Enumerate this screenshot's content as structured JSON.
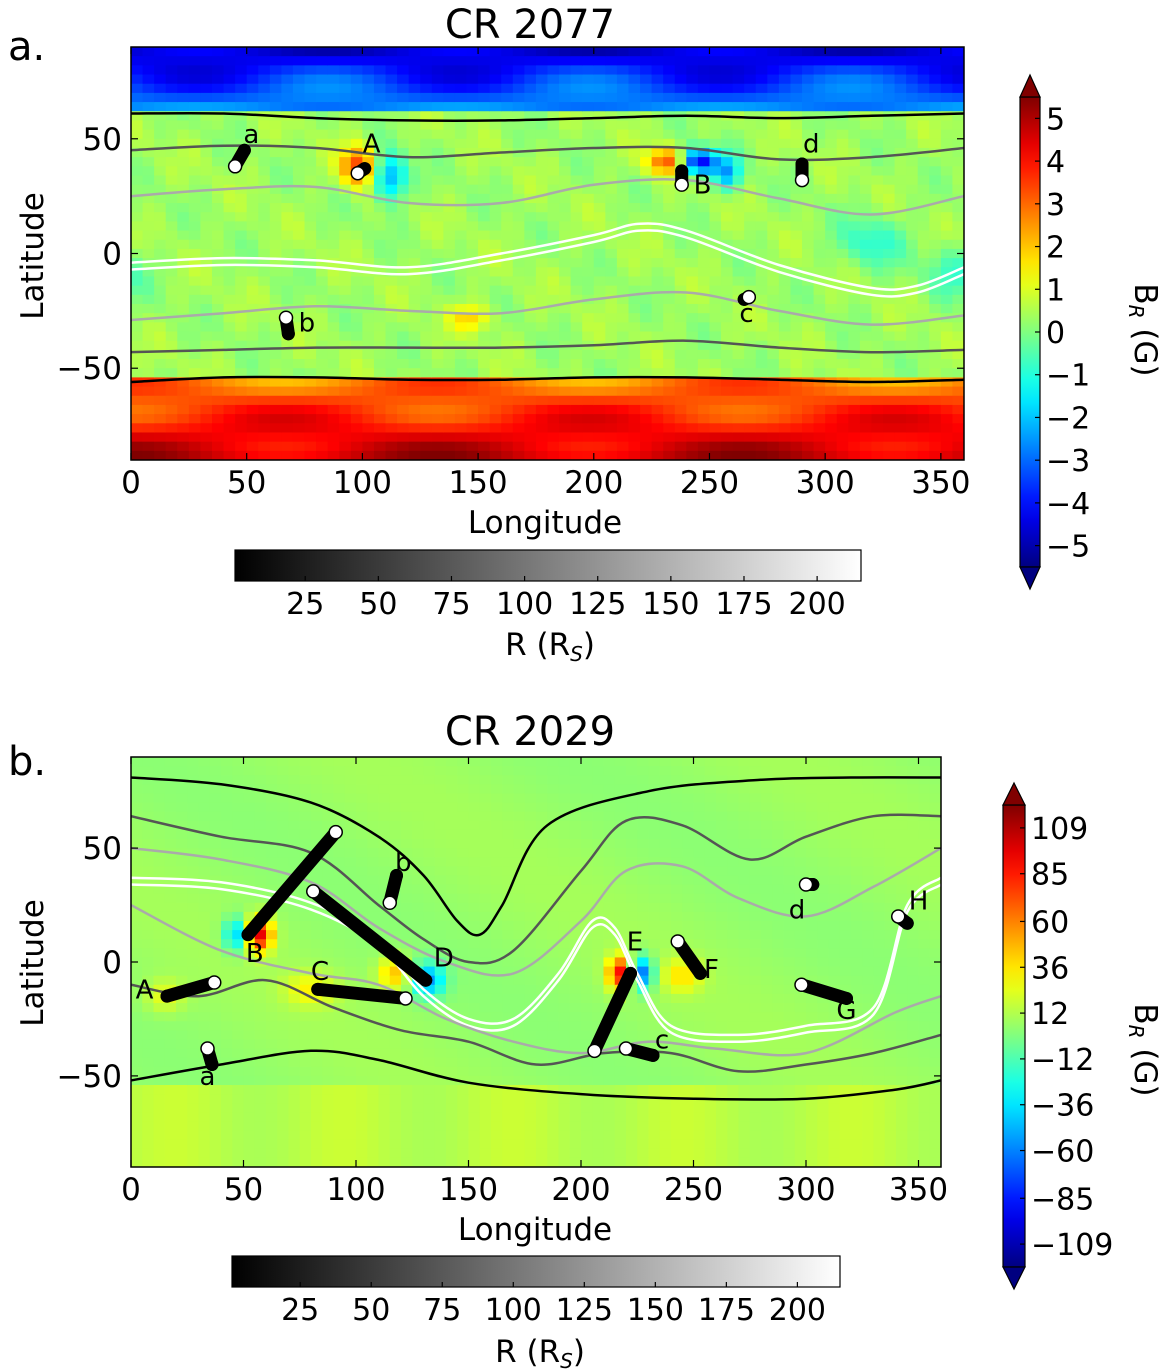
{
  "chart_data": [
    {
      "panel_label": "a.",
      "type": "heatmap",
      "title": "CR 2077",
      "xlabel": "Longitude",
      "ylabel": "Latitude",
      "xlim": [
        0,
        360
      ],
      "ylim": [
        -90,
        90
      ],
      "xticks": [
        "0",
        "50",
        "100",
        "150",
        "200",
        "250",
        "300",
        "350"
      ],
      "xtick_values": [
        0,
        50,
        100,
        150,
        200,
        250,
        300,
        350
      ],
      "yticks": [
        "50",
        "0",
        "−50"
      ],
      "ytick_values": [
        50,
        0,
        -50
      ],
      "colorbar": {
        "label": "B",
        "label_sub": "R",
        "label_unit": "(G)",
        "ticks": [
          "5",
          "4",
          "3",
          "2",
          "1",
          "0",
          "−1",
          "−2",
          "−3",
          "−4",
          "−5"
        ],
        "tick_values": [
          5,
          4,
          3,
          2,
          1,
          0,
          -1,
          -2,
          -3,
          -4,
          -5
        ],
        "range": [
          -5.5,
          5.5
        ],
        "colormap": "jet"
      },
      "distance_colorbar": {
        "label": "R (R",
        "label_sub": "S",
        "label_close": ")",
        "ticks": [
          "25",
          "50",
          "75",
          "100",
          "125",
          "150",
          "175",
          "200"
        ],
        "tick_values": [
          25,
          50,
          75,
          100,
          125,
          150,
          175,
          200
        ],
        "range": [
          1,
          215
        ]
      },
      "contours": [
        {
          "color": "#000000",
          "lon": [
            0,
            40,
            80,
            120,
            160,
            200,
            240,
            280,
            320,
            360
          ],
          "lat": [
            61,
            61,
            59,
            58,
            58,
            59,
            60,
            59,
            60,
            61
          ]
        },
        {
          "color": "#555555",
          "lon": [
            0,
            40,
            80,
            120,
            160,
            200,
            240,
            280,
            320,
            360
          ],
          "lat": [
            45,
            47,
            46,
            42,
            44,
            46,
            46,
            41,
            42,
            46
          ]
        },
        {
          "color": "#aaaaaa",
          "lon": [
            0,
            40,
            80,
            120,
            160,
            200,
            240,
            280,
            320,
            360
          ],
          "lat": [
            25,
            28,
            29,
            22,
            22,
            30,
            32,
            24,
            17,
            25
          ]
        },
        {
          "color": "#ffffff",
          "lon": [
            0,
            40,
            80,
            120,
            160,
            200,
            220,
            240,
            280,
            320,
            340,
            360
          ],
          "lat": [
            -4,
            -2,
            -3,
            -6,
            0,
            8,
            13,
            10,
            -5,
            -15,
            -14,
            -6
          ]
        },
        {
          "color": "#ffffff",
          "lon": [
            0,
            40,
            80,
            120,
            160,
            200,
            220,
            240,
            280,
            320,
            340,
            360
          ],
          "lat": [
            -7,
            -5,
            -6,
            -9,
            -3,
            5,
            10,
            7,
            -8,
            -18,
            -17,
            -9
          ]
        },
        {
          "color": "#aaaaaa",
          "lon": [
            0,
            40,
            80,
            120,
            160,
            200,
            240,
            280,
            320,
            360
          ],
          "lat": [
            -29,
            -26,
            -23,
            -25,
            -26,
            -20,
            -17,
            -25,
            -31,
            -27
          ]
        },
        {
          "color": "#555555",
          "lon": [
            0,
            40,
            80,
            120,
            160,
            200,
            240,
            280,
            320,
            360
          ],
          "lat": [
            -43,
            -42,
            -41,
            -41,
            -41,
            -40,
            -38,
            -41,
            -43,
            -42
          ]
        },
        {
          "color": "#000000",
          "lon": [
            0,
            40,
            80,
            120,
            160,
            200,
            240,
            280,
            320,
            360
          ],
          "lat": [
            -56,
            -54,
            -54,
            -55,
            -55,
            -54,
            -54,
            -55,
            -56,
            -55
          ]
        }
      ],
      "tracks": [
        {
          "label": "a",
          "start": [
            45,
            38
          ],
          "end": [
            49,
            45
          ],
          "label_at": [
            52,
            52
          ]
        },
        {
          "label": "A",
          "start": [
            98,
            35
          ],
          "end": [
            101,
            37
          ],
          "label_at": [
            104,
            48
          ]
        },
        {
          "label": "B",
          "start": [
            238,
            30
          ],
          "end": [
            238,
            36
          ],
          "label_at": [
            247,
            30
          ]
        },
        {
          "label": "d",
          "start": [
            290,
            32
          ],
          "end": [
            290,
            39
          ],
          "label_at": [
            294,
            48
          ]
        },
        {
          "label": "b",
          "start": [
            67,
            -28
          ],
          "end": [
            68,
            -35
          ],
          "label_at": [
            76,
            -30
          ]
        },
        {
          "label": "c",
          "start": [
            267,
            -19
          ],
          "end": [
            265,
            -20
          ],
          "label_at": [
            266,
            -26
          ]
        }
      ],
      "features": [
        {
          "lon": 98,
          "lat": 38,
          "value": 3.2,
          "sigma": [
            5,
            6
          ]
        },
        {
          "lon": 112,
          "lat": 33,
          "value": -2.8,
          "sigma": [
            5,
            7
          ]
        },
        {
          "lon": 232,
          "lat": 40,
          "value": 3.2,
          "sigma": [
            6,
            4
          ]
        },
        {
          "lon": 245,
          "lat": 40,
          "value": -4.8,
          "sigma": [
            6,
            4
          ]
        },
        {
          "lon": 258,
          "lat": 35,
          "value": -2.5,
          "sigma": [
            4,
            5
          ]
        },
        {
          "lon": 320,
          "lat": 5,
          "value": -1.2,
          "sigma": [
            10,
            8
          ]
        },
        {
          "lon": 355,
          "lat": -8,
          "value": -1.0,
          "sigma": [
            8,
            8
          ]
        },
        {
          "lon": 147,
          "lat": -28,
          "value": 1.5,
          "sigma": [
            6,
            4
          ]
        }
      ]
    },
    {
      "panel_label": "b.",
      "type": "heatmap",
      "title": "CR 2029",
      "xlabel": "Longitude",
      "ylabel": "Latitude",
      "xlim": [
        0,
        360
      ],
      "ylim": [
        -90,
        90
      ],
      "xticks": [
        "0",
        "50",
        "100",
        "150",
        "200",
        "250",
        "300",
        "350"
      ],
      "xtick_values": [
        0,
        50,
        100,
        150,
        200,
        250,
        300,
        350
      ],
      "yticks": [
        "50",
        "0",
        "−50"
      ],
      "ytick_values": [
        50,
        0,
        -50
      ],
      "colorbar": {
        "label": "B",
        "label_sub": "R",
        "label_unit": "(G)",
        "ticks": [
          "109",
          "85",
          "60",
          "36",
          "12",
          "−12",
          "−36",
          "−60",
          "−85",
          "−109"
        ],
        "tick_values": [
          109,
          85,
          60,
          36,
          12,
          -12,
          -36,
          -60,
          -85,
          -109
        ],
        "range": [
          -121,
          121
        ],
        "colormap": "jet"
      },
      "distance_colorbar": {
        "label": "R (R",
        "label_sub": "S",
        "label_close": ")",
        "ticks": [
          "25",
          "50",
          "75",
          "100",
          "125",
          "150",
          "175",
          "200"
        ],
        "tick_values": [
          25,
          50,
          75,
          100,
          125,
          150,
          175,
          200
        ],
        "range": [
          1,
          215
        ]
      },
      "contours": [
        {
          "color": "#000000",
          "lon": [
            0,
            40,
            80,
            110,
            130,
            145,
            155,
            165,
            185,
            230,
            280,
            320,
            360
          ],
          "lat": [
            81,
            78,
            70,
            55,
            38,
            18,
            12,
            25,
            60,
            75,
            80,
            81,
            81
          ]
        },
        {
          "color": "#555555",
          "lon": [
            0,
            40,
            80,
            110,
            130,
            150,
            170,
            200,
            220,
            245,
            275,
            300,
            330,
            360
          ],
          "lat": [
            64,
            55,
            48,
            25,
            10,
            0,
            5,
            40,
            62,
            60,
            45,
            55,
            64,
            64
          ]
        },
        {
          "color": "#aaaaaa",
          "lon": [
            0,
            40,
            80,
            110,
            140,
            170,
            200,
            220,
            245,
            270,
            300,
            330,
            360
          ],
          "lat": [
            50,
            45,
            35,
            15,
            0,
            -5,
            18,
            40,
            42,
            28,
            20,
            33,
            50
          ]
        },
        {
          "color": "#ffffff",
          "lon": [
            0,
            40,
            80,
            110,
            130,
            150,
            170,
            190,
            205,
            215,
            225,
            240,
            270,
            300,
            330,
            345,
            360
          ],
          "lat": [
            37,
            35,
            26,
            10,
            -12,
            -25,
            -25,
            -5,
            18,
            15,
            -5,
            -28,
            -32,
            -28,
            -20,
            25,
            37
          ]
        },
        {
          "color": "#ffffff",
          "lon": [
            0,
            40,
            80,
            110,
            130,
            150,
            170,
            190,
            205,
            215,
            225,
            240,
            270,
            300,
            330,
            345,
            360
          ],
          "lat": [
            34,
            32,
            23,
            7,
            -15,
            -28,
            -28,
            -8,
            15,
            12,
            -8,
            -31,
            -35,
            -31,
            -23,
            22,
            34
          ]
        },
        {
          "color": "#aaaaaa",
          "lon": [
            0,
            40,
            80,
            110,
            140,
            170,
            200,
            230,
            260,
            300,
            340,
            360
          ],
          "lat": [
            25,
            5,
            -5,
            -10,
            -25,
            -35,
            -40,
            -35,
            -38,
            -40,
            -22,
            -15
          ]
        },
        {
          "color": "#555555",
          "lon": [
            0,
            30,
            60,
            90,
            120,
            150,
            180,
            210,
            240,
            270,
            300,
            330,
            360
          ],
          "lat": [
            -10,
            -15,
            -8,
            -20,
            -30,
            -35,
            -45,
            -40,
            -40,
            -48,
            -45,
            -40,
            -32
          ]
        },
        {
          "color": "#000000",
          "lon": [
            0,
            40,
            80,
            110,
            150,
            200,
            250,
            300,
            340,
            360
          ],
          "lat": [
            -52,
            -45,
            -39,
            -43,
            -53,
            -58,
            -60,
            -60,
            -56,
            -52
          ]
        }
      ],
      "tracks": [
        {
          "label": "A",
          "start": [
            37,
            -9
          ],
          "end": [
            16,
            -15
          ],
          "label_at": [
            6,
            -12
          ]
        },
        {
          "label": "B",
          "start": [
            91,
            57
          ],
          "end": [
            52,
            12
          ],
          "label_at": [
            55,
            4
          ]
        },
        {
          "label": "C",
          "start": [
            122,
            -16
          ],
          "end": [
            83,
            -12
          ],
          "label_at": [
            84,
            -4
          ]
        },
        {
          "label": "D",
          "start": [
            81,
            31
          ],
          "end": [
            131,
            -8
          ],
          "label_at": [
            139,
            2
          ]
        },
        {
          "label": "E",
          "start": [
            206,
            -39
          ],
          "end": [
            222,
            -5
          ],
          "label_at": [
            224,
            9
          ]
        },
        {
          "label": "F",
          "start": [
            243,
            9
          ],
          "end": [
            253,
            -5
          ],
          "label_at": [
            258,
            -3
          ]
        },
        {
          "label": "G",
          "start": [
            298,
            -10
          ],
          "end": [
            318,
            -16
          ],
          "label_at": [
            318,
            -21
          ]
        },
        {
          "label": "H",
          "start": [
            341,
            20
          ],
          "end": [
            345,
            17
          ],
          "label_at": [
            350,
            27
          ]
        },
        {
          "label": "a",
          "start": [
            34,
            -38
          ],
          "end": [
            36,
            -45
          ],
          "label_at": [
            34,
            -50
          ]
        },
        {
          "label": "b",
          "start": [
            115,
            26
          ],
          "end": [
            118,
            38
          ],
          "label_at": [
            121,
            44
          ]
        },
        {
          "label": "c",
          "start": [
            220,
            -38
          ],
          "end": [
            232,
            -41
          ],
          "label_at": [
            236,
            -34
          ]
        },
        {
          "label": "d",
          "start": [
            300,
            34
          ],
          "end": [
            303,
            34
          ],
          "label_at": [
            296,
            23
          ]
        }
      ],
      "features": [
        {
          "lon": 47,
          "lat": 12,
          "value": -50,
          "sigma": [
            4,
            5
          ]
        },
        {
          "lon": 57,
          "lat": 12,
          "value": 90,
          "sigma": [
            4,
            5
          ]
        },
        {
          "lon": 117,
          "lat": -5,
          "value": 40,
          "sigma": [
            5,
            5
          ]
        },
        {
          "lon": 132,
          "lat": -8,
          "value": -60,
          "sigma": [
            5,
            5
          ]
        },
        {
          "lon": 218,
          "lat": -5,
          "value": 90,
          "sigma": [
            4,
            5
          ]
        },
        {
          "lon": 226,
          "lat": -5,
          "value": -80,
          "sigma": [
            4,
            5
          ]
        },
        {
          "lon": 245,
          "lat": -6,
          "value": 30,
          "sigma": [
            6,
            5
          ]
        },
        {
          "lon": 80,
          "lat": -12,
          "value": 25,
          "sigma": [
            8,
            5
          ]
        },
        {
          "lon": 15,
          "lat": -15,
          "value": 20,
          "sigma": [
            6,
            5
          ]
        }
      ]
    }
  ]
}
